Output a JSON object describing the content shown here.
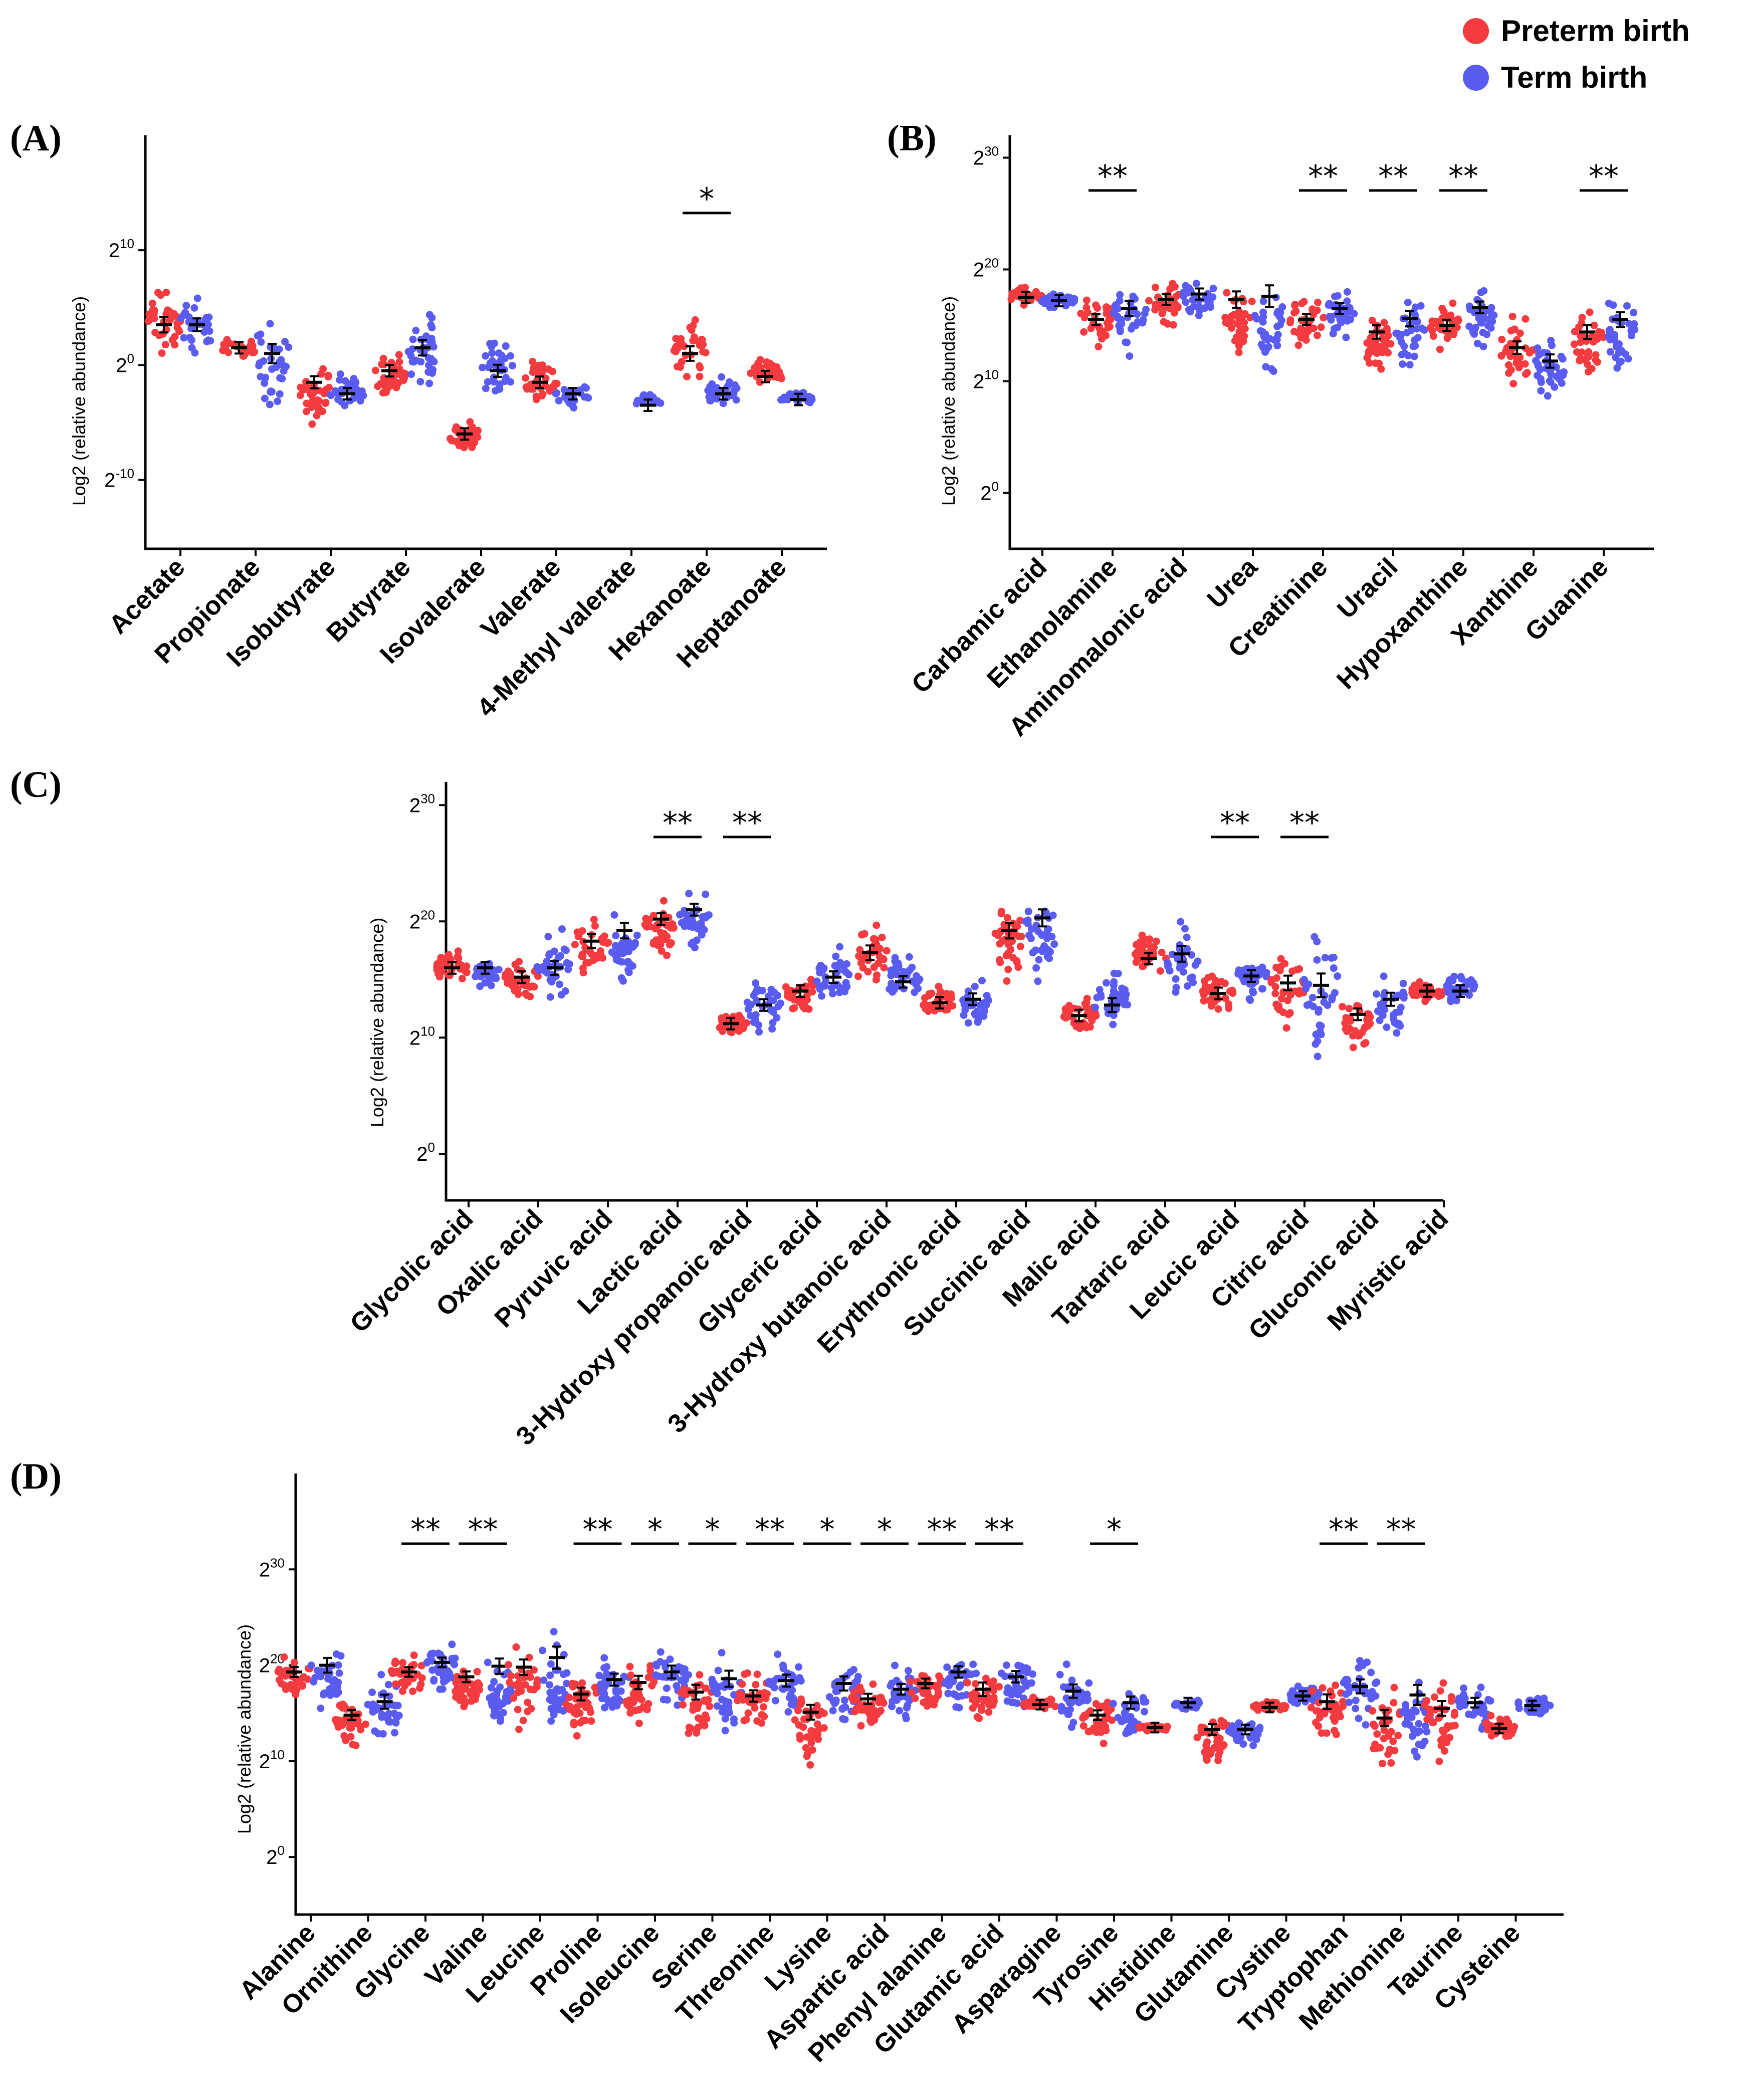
{
  "legend": {
    "items": [
      {
        "label": "Preterm birth",
        "color": "#f43b3f"
      },
      {
        "label": "Term birth",
        "color": "#5a5cf0"
      }
    ]
  },
  "chart_data": [
    {
      "panel": "(A)",
      "type": "scatter",
      "ylabel": "Log2 (relative abundance)",
      "yscale": "log2",
      "y_exponent_range": [
        -16,
        20
      ],
      "yticks": [
        {
          "base": "2",
          "exp": "10",
          "value_exp": 10
        },
        {
          "base": "2",
          "exp": "0",
          "value_exp": 0
        },
        {
          "base": "2",
          "exp": "-10",
          "value_exp": -10
        }
      ],
      "categories": [
        "Acetate",
        "Propionate",
        "Isobutyrate",
        "Butyrate",
        "Isovalerate",
        "Valerate",
        "4-Methyl valerate",
        "Hexanoate",
        "Heptanoate"
      ],
      "series": [
        {
          "name": "Preterm birth",
          "mean_log2": [
            3.5,
            1.5,
            -1.5,
            -0.5,
            -6,
            -1.5,
            null,
            1.0,
            -1.0
          ],
          "spread": [
            [
              -1.5,
              8
            ],
            [
              -0.5,
              3
            ],
            [
              -7,
              0.5
            ],
            [
              -4,
              2
            ],
            [
              -8,
              -4
            ],
            [
              -4,
              1
            ],
            null,
            [
              -3,
              6
            ],
            [
              -2,
              1.5
            ]
          ]
        },
        {
          "name": "Term birth",
          "mean_log2": [
            3.5,
            1.0,
            -2.5,
            1.5,
            -0.5,
            -2.5,
            -3.5,
            -2.5,
            -3.0
          ],
          "spread": [
            [
              -1,
              7
            ],
            [
              -6.5,
              5.5
            ],
            [
              -4,
              0
            ],
            [
              -4,
              5.5
            ],
            [
              -3.5,
              4
            ],
            [
              -5,
              -1
            ],
            [
              -3.5,
              -2
            ],
            [
              -4,
              -0.5
            ],
            [
              -3.5,
              -2
            ]
          ]
        }
      ],
      "significance": [
        {
          "category": "Hexanoate",
          "marker": "*"
        }
      ]
    },
    {
      "panel": "(B)",
      "type": "scatter",
      "ylabel": "Log2 (relative abundance)",
      "yscale": "log2",
      "y_exponent_range": [
        -5,
        32
      ],
      "yticks": [
        {
          "base": "2",
          "exp": "30",
          "value_exp": 30
        },
        {
          "base": "2",
          "exp": "20",
          "value_exp": 20
        },
        {
          "base": "2",
          "exp": "10",
          "value_exp": 10
        },
        {
          "base": "2",
          "exp": "0",
          "value_exp": 0
        }
      ],
      "categories": [
        "Carbamic acid",
        "Ethanolamine",
        "Aminomalonic acid",
        "Urea",
        "Creatinine",
        "Uracil",
        "Hypoxanthine",
        "Xanthine",
        "Guanine"
      ],
      "series": [
        {
          "name": "Preterm birth",
          "mean_log2": [
            17.5,
            15.5,
            17.3,
            17.3,
            15.5,
            14.4,
            15.0,
            13.0,
            14.4
          ],
          "spread": [
            [
              16.8,
              19
            ],
            [
              12,
              18.5
            ],
            [
              13.5,
              20
            ],
            [
              8.5,
              19
            ],
            [
              12,
              18
            ],
            [
              8.5,
              17
            ],
            [
              11.5,
              18
            ],
            [
              8.5,
              16.5
            ],
            [
              8.5,
              17.5
            ]
          ]
        },
        {
          "name": "Term birth",
          "mean_log2": [
            17.2,
            16.5,
            17.8,
            17.6,
            16.5,
            15.6,
            16.6,
            11.8,
            15.5
          ],
          "spread": [
            [
              16.2,
              18
            ],
            [
              10,
              19.5
            ],
            [
              14.5,
              19.5
            ],
            [
              5.5,
              19.5
            ],
            [
              12.5,
              18.5
            ],
            [
              8.5,
              18.5
            ],
            [
              11.5,
              19
            ],
            [
              6.5,
              15
            ],
            [
              8.5,
              18
            ]
          ]
        }
      ],
      "significance": [
        {
          "category": "Ethanolamine",
          "marker": "**"
        },
        {
          "category": "Creatinine",
          "marker": "**"
        },
        {
          "category": "Uracil",
          "marker": "**"
        },
        {
          "category": "Hypoxanthine",
          "marker": "**"
        },
        {
          "category": "Guanine",
          "marker": "**"
        }
      ]
    },
    {
      "panel": "(C)",
      "type": "scatter",
      "ylabel": "Log2 (relative abundance)",
      "yscale": "log2",
      "y_exponent_range": [
        -4,
        32
      ],
      "yticks": [
        {
          "base": "2",
          "exp": "30",
          "value_exp": 30
        },
        {
          "base": "2",
          "exp": "20",
          "value_exp": 20
        },
        {
          "base": "2",
          "exp": "10",
          "value_exp": 10
        },
        {
          "base": "2",
          "exp": "0",
          "value_exp": 0
        }
      ],
      "categories": [
        "Glycolic acid",
        "Oxalic acid",
        "Pyruvic acid",
        "Lactic acid",
        "3-Hydroxy propanoic acid",
        "Glyceric acid",
        "3-Hydroxy butanoic acid",
        "Erythronic acid",
        "Succinic acid",
        "Malic acid",
        "Tartaric acid",
        "Leucic acid",
        "Citric acid",
        "Gluconic acid",
        "Myristic acid"
      ],
      "series": [
        {
          "name": "Preterm birth",
          "mean_log2": [
            16.0,
            15.2,
            18.3,
            20.2,
            11.2,
            14.0,
            17.3,
            13.0,
            19.2,
            11.9,
            16.8,
            13.8,
            14.7,
            12.0,
            14.0
          ],
          "spread": [
            [
              14,
              18
            ],
            [
              12.5,
              17.5
            ],
            [
              13,
              21.5
            ],
            [
              15,
              22
            ],
            [
              10,
              12.5
            ],
            [
              11.5,
              16
            ],
            [
              12.5,
              21.5
            ],
            [
              11,
              15
            ],
            [
              12.5,
              22
            ],
            [
              9.5,
              14.5
            ],
            [
              14.5,
              20
            ],
            [
              10.5,
              17.5
            ],
            [
              9,
              18
            ],
            [
              7.5,
              14
            ],
            [
              13,
              15.5
            ]
          ]
        },
        {
          "name": "Term birth",
          "mean_log2": [
            16.0,
            16.0,
            19.2,
            21.0,
            12.8,
            15.2,
            14.8,
            13.3,
            20.3,
            12.8,
            17.2,
            15.3,
            14.5,
            13.3,
            14.0
          ],
          "spread": [
            [
              13.5,
              17
            ],
            [
              12,
              20.5
            ],
            [
              12,
              21.5
            ],
            [
              16,
              22.5
            ],
            [
              10,
              16
            ],
            [
              11.5,
              18.5
            ],
            [
              12.5,
              18
            ],
            [
              10,
              15.5
            ],
            [
              12,
              22.5
            ],
            [
              9,
              17.5
            ],
            [
              12,
              21.5
            ],
            [
              12,
              18
            ],
            [
              5,
              19.5
            ],
            [
              8,
              16
            ],
            [
              12.5,
              16.5
            ]
          ]
        }
      ],
      "significance": [
        {
          "category": "Lactic acid",
          "marker": "**"
        },
        {
          "category": "3-Hydroxy propanoic acid",
          "marker": "**"
        },
        {
          "category": "Leucic acid",
          "marker": "**"
        },
        {
          "category": "Citric acid",
          "marker": "**"
        }
      ]
    },
    {
      "panel": "(D)",
      "type": "scatter",
      "ylabel": "Log2 (relative abundance)",
      "yscale": "log2",
      "y_exponent_range": [
        -6,
        40
      ],
      "yticks": [
        {
          "base": "2",
          "exp": "30",
          "value_exp": 30
        },
        {
          "base": "2",
          "exp": "20",
          "value_exp": 20
        },
        {
          "base": "2",
          "exp": "10",
          "value_exp": 10
        },
        {
          "base": "2",
          "exp": "0",
          "value_exp": 0
        }
      ],
      "categories": [
        "Alanine",
        "Ornithine",
        "Glycine",
        "Valine",
        "Leucine",
        "Proline",
        "Isoleucine",
        "Serine",
        "Threonine",
        "Lysine",
        "Aspartic acid",
        "Phenyl alanine",
        "Glutamic acid",
        "Asparagine",
        "Tyrosine",
        "Histidine",
        "Glutamine",
        "Cystine",
        "Tryptophan",
        "Methionine",
        "Taurine",
        "Cysteine"
      ],
      "series": [
        {
          "name": "Preterm birth",
          "mean_log2": [
            19.3,
            14.8,
            19.3,
            18.8,
            19.8,
            17.0,
            18.2,
            17.2,
            16.8,
            15.1,
            16.5,
            18.1,
            17.5,
            15.9,
            14.8,
            13.5,
            13.3,
            15.6,
            16.2,
            14.5,
            15.5,
            13.4
          ],
          "spread": [
            [
              14,
              21.5
            ],
            [
              9.5,
              17
            ],
            [
              15,
              22
            ],
            [
              13,
              21
            ],
            [
              11,
              22.5
            ],
            [
              10.5,
              20
            ],
            [
              11,
              21
            ],
            [
              9,
              20
            ],
            [
              12,
              20.5
            ],
            [
              7,
              18
            ],
            [
              12,
              19.5
            ],
            [
              14,
              20.5
            ],
            [
              11,
              21
            ],
            [
              15,
              17
            ],
            [
              10.5,
              17.5
            ],
            [
              13,
              14
            ],
            [
              7.5,
              15.5
            ],
            [
              15,
              16.5
            ],
            [
              9,
              20
            ],
            [
              6.5,
              18.5
            ],
            [
              8,
              19
            ],
            [
              11.5,
              15.5
            ]
          ]
        },
        {
          "name": "Term birth",
          "mean_log2": [
            20.0,
            16.2,
            20.3,
            19.9,
            20.8,
            18.5,
            19.3,
            18.6,
            18.4,
            18.1,
            17.5,
            19.3,
            18.8,
            17.3,
            16.1,
            16.1,
            13.3,
            16.8,
            17.8,
            16.9,
            16.1,
            15.8
          ],
          "spread": [
            [
              11,
              22
            ],
            [
              9.5,
              20
            ],
            [
              16,
              23
            ],
            [
              10.5,
              22
            ],
            [
              7,
              23.5
            ],
            [
              12.5,
              21.5
            ],
            [
              13,
              22.5
            ],
            [
              10,
              22
            ],
            [
              12.5,
              21.5
            ],
            [
              11,
              21.5
            ],
            [
              13,
              21
            ],
            [
              13.5,
              22
            ],
            [
              13.5,
              22
            ],
            [
              11,
              21
            ],
            [
              10,
              19
            ],
            [
              15,
              16.5
            ],
            [
              10.5,
              15
            ],
            [
              15,
              19
            ],
            [
              11,
              21.5
            ],
            [
              5,
              20
            ],
            [
              12.5,
              19.5
            ],
            [
              14,
              17.5
            ]
          ]
        }
      ],
      "significance": [
        {
          "category": "Glycine",
          "marker": "**"
        },
        {
          "category": "Valine",
          "marker": "**"
        },
        {
          "category": "Proline",
          "marker": "**"
        },
        {
          "category": "Isoleucine",
          "marker": "*"
        },
        {
          "category": "Serine",
          "marker": "*"
        },
        {
          "category": "Threonine",
          "marker": "**"
        },
        {
          "category": "Lysine",
          "marker": "*"
        },
        {
          "category": "Aspartic acid",
          "marker": "*"
        },
        {
          "category": "Phenyl alanine",
          "marker": "**"
        },
        {
          "category": "Glutamic acid",
          "marker": "**"
        },
        {
          "category": "Tyrosine",
          "marker": "*"
        },
        {
          "category": "Tryptophan",
          "marker": "**"
        },
        {
          "category": "Methionine",
          "marker": "**"
        }
      ]
    }
  ]
}
